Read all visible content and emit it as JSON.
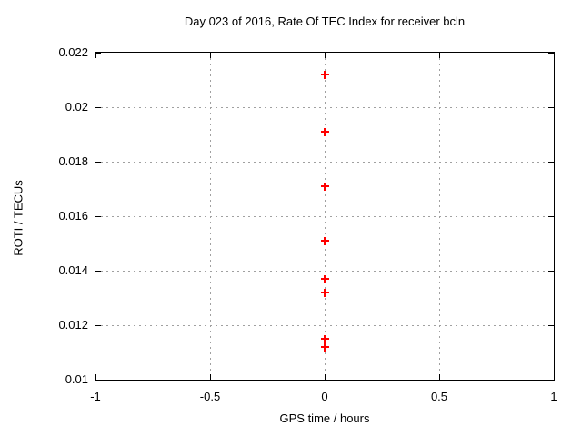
{
  "chart_data": {
    "type": "scatter",
    "title": "Day 023 of 2016, Rate Of TEC Index for receiver bcln",
    "xlabel": "GPS time / hours",
    "ylabel": "ROTI / TECUs",
    "xlim": [
      -1,
      1
    ],
    "ylim": [
      0.01,
      0.022
    ],
    "xticks": {
      "values": [
        -1,
        -0.5,
        0,
        0.5,
        1
      ],
      "labels": [
        "-1",
        "-0.5",
        "0",
        "0.5",
        "1"
      ]
    },
    "yticks": {
      "values": [
        0.01,
        0.012,
        0.014,
        0.016,
        0.018,
        0.02,
        0.022
      ],
      "labels": [
        "0.01",
        "0.012",
        "0.014",
        "0.016",
        "0.018",
        "0.02",
        "0.022"
      ]
    },
    "grid": true,
    "legend": "none",
    "series": [
      {
        "name": "ROTI",
        "marker": "plus",
        "color": "#ff0000",
        "points": [
          {
            "x": 0,
            "y": 0.0212
          },
          {
            "x": 0,
            "y": 0.0191
          },
          {
            "x": 0,
            "y": 0.0171
          },
          {
            "x": 0,
            "y": 0.0151
          },
          {
            "x": 0,
            "y": 0.0137
          },
          {
            "x": 0,
            "y": 0.0132
          },
          {
            "x": 0,
            "y": 0.0115
          },
          {
            "x": 0,
            "y": 0.0112
          }
        ]
      }
    ],
    "colors": {
      "axis": "#000000",
      "grid": "#a0a0a0",
      "text": "#000000",
      "background": "#ffffff",
      "marker": "#ff0000"
    }
  }
}
